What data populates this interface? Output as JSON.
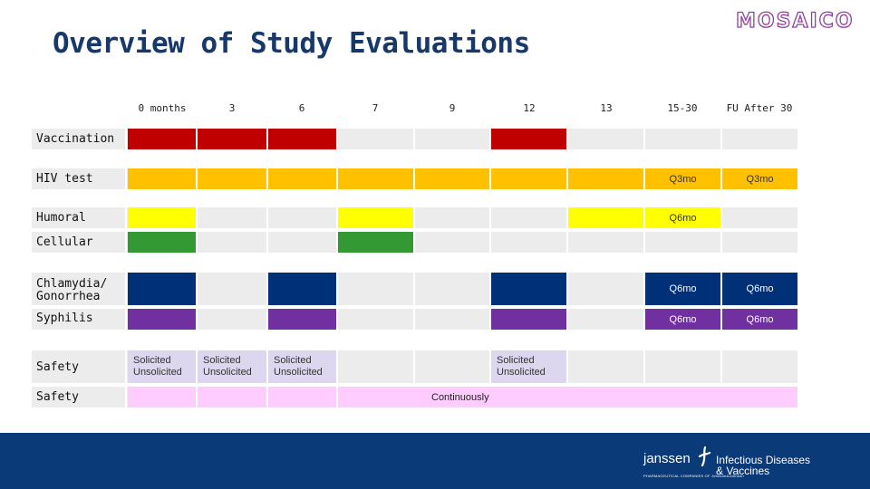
{
  "title": "Overview of Study Evaluations",
  "logo_text": "MOSAICO",
  "columns": [
    "0 months",
    "3",
    "6",
    "7",
    "9",
    "12",
    "13",
    "15-30",
    "FU After 30"
  ],
  "rows": {
    "vaccination": "Vaccination",
    "hiv": "HIV test",
    "humoral": "Humoral",
    "cellular": "Cellular",
    "chlamydia": "Chlamydia/\nGonorrhea",
    "syphilis": "Syphilis",
    "safety1": "Safety",
    "safety2": "Safety"
  },
  "cells": {
    "q3mo": "Q3mo",
    "q6mo": "Q6mo",
    "solicited": "Solicited\nUnsolicited",
    "continuously": "Continuously"
  },
  "colors": {
    "title": "#17386b",
    "empty": "#ececec",
    "red": "#c00000",
    "orange": "#ffc000",
    "yellow": "#ffff00",
    "green": "#339933",
    "navy": "#003078",
    "purple": "#7030a0",
    "lavender": "#dcd7ee",
    "pink": "#ffccff",
    "footer": "#0b3a78"
  },
  "footer": {
    "brand": "janssen",
    "division": "Infectious Diseases & Vaccines",
    "tagline": "PHARMACEUTICAL COMPANIES OF Johnson&Johnson"
  }
}
